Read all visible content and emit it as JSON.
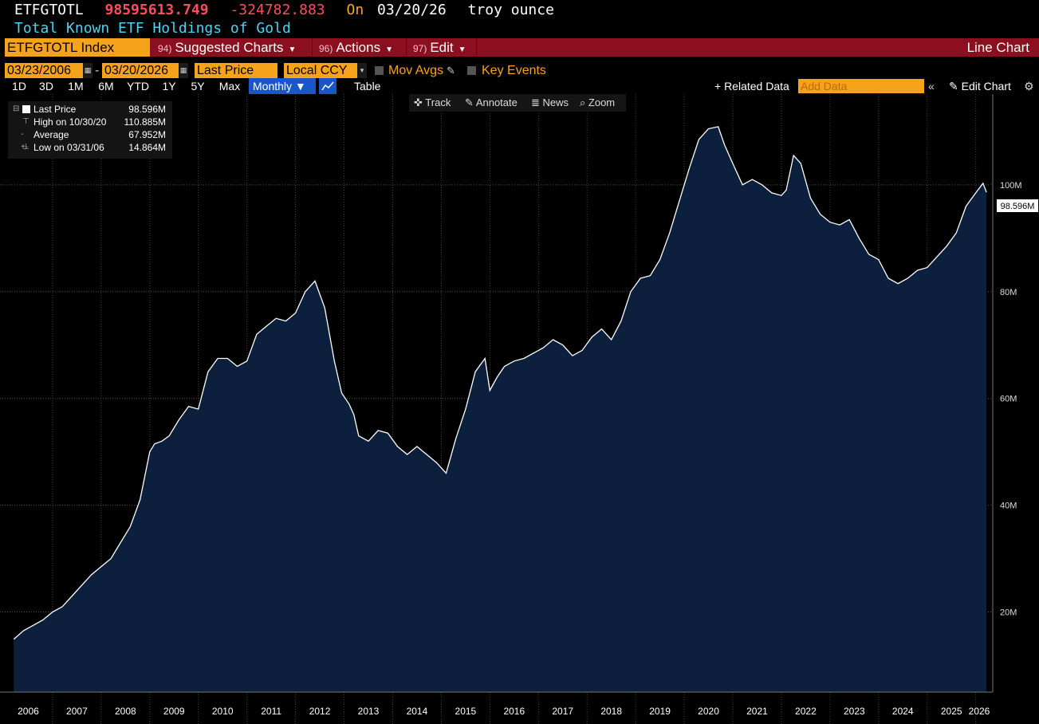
{
  "header": {
    "ticker": "ETFGTOTL",
    "last_value": "98595613.749",
    "change": "-324782.883",
    "on_label": "On",
    "date": "03/20/26",
    "unit": "troy ounce",
    "description": "Total Known ETF Holdings of Gold"
  },
  "menu": {
    "index": "ETFGTOTL Index",
    "suggested_num": "94)",
    "suggested": "Suggested Charts",
    "actions_num": "96)",
    "actions": "Actions",
    "edit_num": "97)",
    "edit": "Edit",
    "chart_type": "Line Chart"
  },
  "controls": {
    "start_date": "03/23/2006",
    "end_date": "03/20/2026",
    "field": "Last Price",
    "currency": "Local CCY",
    "mov_avgs": "Mov Avgs",
    "key_events": "Key Events",
    "ranges": [
      "1D",
      "3D",
      "1M",
      "6M",
      "YTD",
      "1Y",
      "5Y",
      "Max"
    ],
    "frequency": "Monthly",
    "table": "Table",
    "related": "+ Related Data",
    "add_data_placeholder": "Add Data",
    "edit_chart": "Edit Chart"
  },
  "tools": {
    "track": "Track",
    "annotate": "Annotate",
    "news": "News",
    "zoom": "Zoom"
  },
  "legend": {
    "last_label": "Last Price",
    "last_value": "98.596M",
    "high_label": "High on 10/30/20",
    "high_value": "110.885M",
    "avg_label": "Average",
    "avg_value": "67.952M",
    "low_label": "Low on 03/31/06",
    "low_value": "14.864M"
  },
  "colors": {
    "background": "#000000",
    "fill": "#0c1f3d",
    "line": "#ffffff",
    "accent": "#f7a21b",
    "bar": "#8b0f1e"
  },
  "chart_data": {
    "type": "area",
    "title": "",
    "xlabel": "",
    "ylabel": "",
    "x_ticks": [
      "2006",
      "2007",
      "2008",
      "2009",
      "2010",
      "2011",
      "2012",
      "2013",
      "2014",
      "2015",
      "2016",
      "2017",
      "2018",
      "2019",
      "2020",
      "2021",
      "2022",
      "2023",
      "2024",
      "2025",
      "2026"
    ],
    "y_ticks": [
      "20M",
      "40M",
      "60M",
      "80M",
      "100M"
    ],
    "y_tick_values": [
      20,
      40,
      60,
      80,
      100
    ],
    "ylim": [
      5,
      117
    ],
    "xlim": [
      2006.0,
      2026.35
    ],
    "last_label": "98.596M",
    "grid": true,
    "series": [
      {
        "x": [
          2006.2,
          2006.4,
          2006.6,
          2006.8,
          2007.0,
          2007.2,
          2007.4,
          2007.6,
          2007.8,
          2008.0,
          2008.2,
          2008.4,
          2008.6,
          2008.8,
          2009.0,
          2009.1,
          2009.25,
          2009.4,
          2009.6,
          2009.8,
          2010.0,
          2010.2,
          2010.4,
          2010.6,
          2010.8,
          2011.0,
          2011.2,
          2011.4,
          2011.6,
          2011.8,
          2012.0,
          2012.2,
          2012.4,
          2012.6,
          2012.8,
          2012.95,
          2013.1,
          2013.2,
          2013.3,
          2013.5,
          2013.7,
          2013.9,
          2014.1,
          2014.3,
          2014.5,
          2014.7,
          2014.9,
          2015.1,
          2015.3,
          2015.5,
          2015.7,
          2015.9,
          2016.0,
          2016.15,
          2016.3,
          2016.5,
          2016.7,
          2016.9,
          2017.1,
          2017.3,
          2017.5,
          2017.7,
          2017.9,
          2018.1,
          2018.3,
          2018.5,
          2018.7,
          2018.9,
          2019.1,
          2019.3,
          2019.5,
          2019.7,
          2019.9,
          2020.1,
          2020.3,
          2020.5,
          2020.7,
          2020.83,
          2021.0,
          2021.2,
          2021.4,
          2021.6,
          2021.8,
          2022.0,
          2022.1,
          2022.25,
          2022.4,
          2022.6,
          2022.8,
          2023.0,
          2023.2,
          2023.4,
          2023.6,
          2023.8,
          2024.0,
          2024.2,
          2024.4,
          2024.6,
          2024.8,
          2025.0,
          2025.2,
          2025.4,
          2025.6,
          2025.8,
          2026.0,
          2026.15,
          2026.22
        ],
        "values": [
          14.9,
          16.5,
          17.5,
          18.5,
          20.0,
          21.0,
          23.0,
          25.0,
          27.0,
          28.5,
          30.0,
          33.0,
          36.0,
          41.0,
          50.0,
          51.5,
          52.0,
          53.0,
          56.0,
          58.5,
          58.0,
          65.0,
          67.5,
          67.5,
          66.0,
          67.0,
          72.0,
          73.5,
          75.0,
          74.5,
          76.0,
          80.0,
          82.0,
          77.0,
          67.0,
          61.0,
          59.0,
          57.0,
          53.0,
          52.0,
          54.0,
          53.5,
          51.0,
          49.5,
          51.0,
          49.5,
          48.0,
          46.0,
          52.5,
          58.0,
          65.0,
          67.5,
          61.5,
          64.0,
          66.0,
          67.0,
          67.5,
          68.5,
          69.5,
          71.0,
          70.0,
          68.0,
          69.0,
          71.5,
          73.0,
          71.0,
          74.5,
          80.0,
          82.5,
          83.0,
          86.0,
          91.0,
          97.0,
          103.0,
          108.5,
          110.5,
          110.885,
          107.5,
          104.0,
          100.0,
          101.0,
          100.0,
          98.5,
          98.0,
          99.0,
          105.5,
          104.0,
          97.5,
          94.5,
          93.0,
          92.5,
          93.5,
          90.0,
          87.0,
          86.0,
          82.5,
          81.5,
          82.5,
          84.0,
          84.5,
          86.5,
          88.5,
          91.0,
          96.0,
          98.5,
          100.3,
          98.596
        ]
      }
    ]
  }
}
